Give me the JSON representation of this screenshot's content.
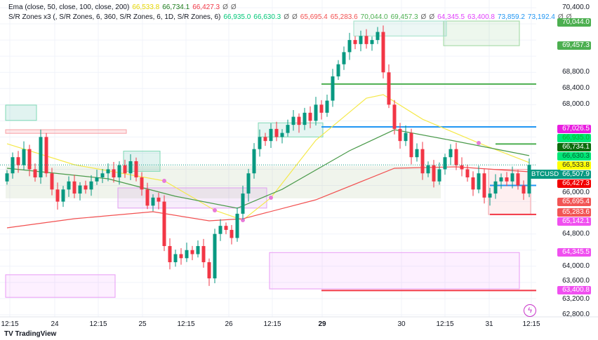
{
  "legend": {
    "ema": {
      "label": "Ema (close, 50, close, 100, close, 200)",
      "values": [
        {
          "v": "66,533.8",
          "c": "#e6d600"
        },
        {
          "v": "66,734.1",
          "c": "#1b7a1b"
        },
        {
          "v": "66,427.3",
          "c": "#f23645"
        },
        {
          "v": "Ø",
          "c": "#666"
        },
        {
          "v": "Ø",
          "c": "#666"
        }
      ]
    },
    "sr": {
      "label": "S/R Zones x3 (, S/R Zones, 6, 360, S/R Zones, 6, 1D, S/R Zones, 6)",
      "values": [
        {
          "v": "66,935.0",
          "c": "#00c878"
        },
        {
          "v": "66,630.3",
          "c": "#00c878"
        },
        {
          "v": "Ø",
          "c": "#666"
        },
        {
          "v": "Ø",
          "c": "#666"
        },
        {
          "v": "65,695.4",
          "c": "#f25050"
        },
        {
          "v": "65,283.6",
          "c": "#f25050"
        },
        {
          "v": "70,044.0",
          "c": "#4caf50"
        },
        {
          "v": "69,457.3",
          "c": "#4caf50"
        },
        {
          "v": "Ø",
          "c": "#666"
        },
        {
          "v": "Ø",
          "c": "#666"
        },
        {
          "v": "64,345.5",
          "c": "#e040fb"
        },
        {
          "v": "63,400.8",
          "c": "#e040fb"
        },
        {
          "v": "73,859.2",
          "c": "#2196f3"
        },
        {
          "v": "73,192.4",
          "c": "#2196f3"
        },
        {
          "v": "Ø",
          "c": "#666"
        },
        {
          "v": "Ø…",
          "c": "#666"
        }
      ]
    }
  },
  "symbol": "BTCUSD",
  "logo_text": "TV TradingView",
  "chart_data": {
    "type": "candlestick",
    "ylim": [
      62800,
      70400
    ],
    "x_ticks": [
      "12:15",
      "24",
      "12:15",
      "25",
      "12:15",
      "26",
      "12:15",
      "29",
      "30",
      "12:15",
      "31",
      "12:15"
    ],
    "y_ticks": [
      "70,400.0",
      "68,800.0",
      "68,400.0",
      "68,000.0",
      "66,000.0",
      "64,800.0",
      "64,000.0",
      "63,600.0",
      "63,200.0",
      "62,800.0"
    ],
    "y_tick_values": [
      70400,
      68800,
      68400,
      68000,
      66000,
      64800,
      64000,
      63600,
      63200,
      62800
    ],
    "open_first": 66100,
    "closes": [
      66300,
      66700,
      66500,
      66900,
      66400,
      66200,
      67200,
      66300,
      65900,
      65600,
      65900,
      66100,
      65800,
      66000,
      65900,
      66100,
      66200,
      66300,
      66400,
      66200,
      66500,
      66300,
      66600,
      66200,
      65900,
      65500,
      65700,
      65600,
      64500,
      64100,
      64300,
      64200,
      64400,
      64300,
      64500,
      64100,
      63700,
      64800,
      65000,
      64900,
      64700,
      65300,
      65800,
      66300,
      66900,
      67200,
      67100,
      67400,
      67200,
      67300,
      67500,
      67700,
      67500,
      67800,
      67600,
      68000,
      67800,
      68100,
      68700,
      69000,
      69300,
      69600,
      69500,
      69700,
      69500,
      69600,
      69800,
      68800,
      68000,
      67400,
      67100,
      67300,
      66700,
      66900,
      66300,
      66500,
      66100,
      66400,
      66700,
      66900,
      66500,
      66400,
      66200,
      65900,
      66300,
      65700,
      65800,
      66100,
      66200,
      66100,
      66300,
      66000,
      65800,
      66507.9
    ],
    "series": [
      {
        "name": "EMA 50",
        "color": "#f5e94a",
        "points": [
          [
            0,
            67033
          ],
          [
            12,
            66513
          ],
          [
            28,
            66114
          ],
          [
            37,
            65385
          ],
          [
            42,
            65142
          ],
          [
            47,
            65697
          ],
          [
            55,
            67120
          ],
          [
            64,
            68161
          ],
          [
            67,
            68248
          ],
          [
            74,
            67640
          ],
          [
            84,
            67051
          ],
          [
            93,
            66565
          ]
        ]
      },
      {
        "name": "EMA 100",
        "color": "#4a9a4a",
        "points": [
          [
            0,
            66426
          ],
          [
            18,
            66166
          ],
          [
            30,
            65732
          ],
          [
            41,
            65437
          ],
          [
            49,
            65905
          ],
          [
            61,
            66860
          ],
          [
            69,
            67380
          ],
          [
            79,
            67120
          ],
          [
            93,
            66738
          ]
        ]
      },
      {
        "name": "EMA 200",
        "color": "#f25050",
        "points": [
          [
            0,
            64951
          ],
          [
            12,
            65176
          ],
          [
            26,
            65350
          ],
          [
            36,
            65124
          ],
          [
            42,
            65176
          ],
          [
            55,
            65645
          ],
          [
            69,
            66426
          ],
          [
            80,
            66461
          ],
          [
            93,
            66339
          ]
        ]
      }
    ],
    "markers": [
      {
        "i": 28,
        "p": 66114
      },
      {
        "i": 37,
        "p": 65385
      },
      {
        "i": 42,
        "p": 65142
      },
      {
        "i": 47,
        "p": 65697
      },
      {
        "i": 84,
        "p": 67051
      }
    ],
    "zones": [
      {
        "from": 0,
        "to": 5,
        "top": 67990,
        "bottom": 67610,
        "fill": "rgba(8,153,129,0.12)",
        "stroke": "#7fd9b5"
      },
      {
        "from": 0,
        "to": 21,
        "top": 67380,
        "bottom": 67290,
        "fill": "rgba(242,54,69,0.12)",
        "stroke": "#f7a0a6"
      },
      {
        "from": 0,
        "to": 77,
        "top": 66480,
        "bottom": 65680,
        "fill": "rgba(140,170,110,0.13)",
        "stroke": "none"
      },
      {
        "from": 20,
        "to": 46,
        "top": 65940,
        "bottom": 65440,
        "fill": "rgba(200,130,230,0.14)",
        "stroke": "#e0a0f0"
      },
      {
        "from": 0,
        "to": 19,
        "top": 63790,
        "bottom": 63230,
        "fill": "rgba(224,64,251,0.08)",
        "stroke": "#e89af5"
      },
      {
        "from": 47,
        "to": 91,
        "top": 64340,
        "bottom": 63440,
        "fill": "rgba(224,64,251,0.08)",
        "stroke": "#e89af5"
      },
      {
        "from": 78,
        "to": 91,
        "top": 70070,
        "bottom": 69460,
        "fill": "rgba(76,175,80,0.10)",
        "stroke": "#9cd79e"
      },
      {
        "from": 62,
        "to": 78,
        "top": 70070,
        "bottom": 69700,
        "fill": "rgba(8,153,129,0.08)",
        "stroke": "#9fe0c8"
      },
      {
        "from": 45,
        "to": 56,
        "top": 67550,
        "bottom": 67200,
        "fill": "rgba(8,153,129,0.10)",
        "stroke": "#7fd9b5"
      },
      {
        "from": 21,
        "to": 27,
        "top": 66850,
        "bottom": 66350,
        "fill": "rgba(8,153,129,0.12)",
        "stroke": "#7fd9b5"
      },
      {
        "from": 86,
        "to": 93,
        "top": 66400,
        "bottom": 65280,
        "fill": "rgba(242,54,69,0.08)",
        "stroke": "#f7a0a6"
      }
    ],
    "levels": [
      {
        "from": 56,
        "price": 68510,
        "color": "#4caf50"
      },
      {
        "from": 56,
        "price": 67450,
        "color": "#2196f3"
      },
      {
        "from": 56,
        "price": 63400.8,
        "color": "#f23645"
      },
      {
        "from": 87,
        "price": 67026.5,
        "color": "#4caf50"
      },
      {
        "from": 86,
        "price": 66000,
        "color": "#2196f3"
      },
      {
        "from": 86,
        "price": 65283.6,
        "color": "#f23645"
      }
    ],
    "price_labels": [
      {
        "v": 70044.0,
        "t": "70,044.0",
        "bg": "#4caf50",
        "fg": "#fff"
      },
      {
        "v": 69457.3,
        "t": "69,457.3",
        "bg": "#4caf50",
        "fg": "#fff"
      },
      {
        "v": 67026.5,
        "t": "67,026.5",
        "bg": "#e91ee0",
        "fg": "#fff"
      },
      {
        "v": 66935.0,
        "t": "66,935.0",
        "bg": "#00e676",
        "fg": "#0b2"
      },
      {
        "v": 66734.1,
        "t": "66,734.1",
        "bg": "#0b6b0b",
        "fg": "#fff"
      },
      {
        "v": 66630.3,
        "t": "66,630.3",
        "bg": "#00e676",
        "fg": "#063"
      },
      {
        "v": 66533.8,
        "t": "66,533.8",
        "bg": "#ffff00",
        "fg": "#333"
      },
      {
        "v": 66507.9,
        "t": "66,507.9",
        "bg": "#089981",
        "fg": "#fff"
      },
      {
        "v": 66427.3,
        "t": "66,427.3",
        "bg": "#f20000",
        "fg": "#fff"
      },
      {
        "v": 65695.4,
        "t": "65,695.4",
        "bg": "#f25555",
        "fg": "#fff"
      },
      {
        "v": 65283.6,
        "t": "65,283.6",
        "bg": "#f25555",
        "fg": "#fff"
      },
      {
        "v": 65142.1,
        "t": "65,142.1",
        "bg": "#f050f0",
        "fg": "#fff"
      },
      {
        "v": 64345.5,
        "t": "64,345.5",
        "bg": "#f050f0",
        "fg": "#fff"
      },
      {
        "v": 63400.8,
        "t": "63,400.8",
        "bg": "#f050f0",
        "fg": "#fff"
      }
    ],
    "colors": {
      "up": "#089981",
      "down": "#f23645"
    }
  }
}
